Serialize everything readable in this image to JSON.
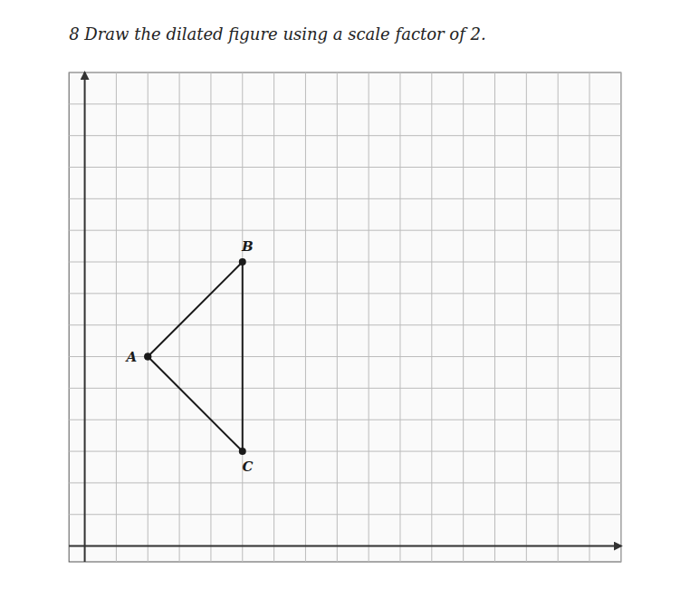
{
  "chart_data": {
    "type": "line",
    "title": "8  Draw the dilated figure using a scale factor of 2.",
    "x": [
      2,
      5,
      5,
      2
    ],
    "values": [
      6,
      9,
      3,
      6
    ],
    "color": "#1a1a1a",
    "marker": "circle",
    "line_style": "solid",
    "annotations": [
      {
        "text": "A",
        "x": 2,
        "y": 6
      },
      {
        "text": "B",
        "x": 5,
        "y": 9
      },
      {
        "text": "C",
        "x": 5,
        "y": 3
      }
    ],
    "xlim": [
      -0.5,
      17
    ],
    "ylim": [
      -0.5,
      15
    ],
    "xticks": [
      0,
      1,
      2,
      3,
      4,
      5,
      6,
      7,
      8,
      9,
      10,
      11,
      12,
      13,
      14,
      15,
      16,
      17
    ],
    "yticks": [
      0,
      1,
      2,
      3,
      4,
      5,
      6,
      7,
      8,
      9,
      10,
      11,
      12,
      13,
      14,
      15
    ],
    "grid": true,
    "tick_labels": false
  }
}
